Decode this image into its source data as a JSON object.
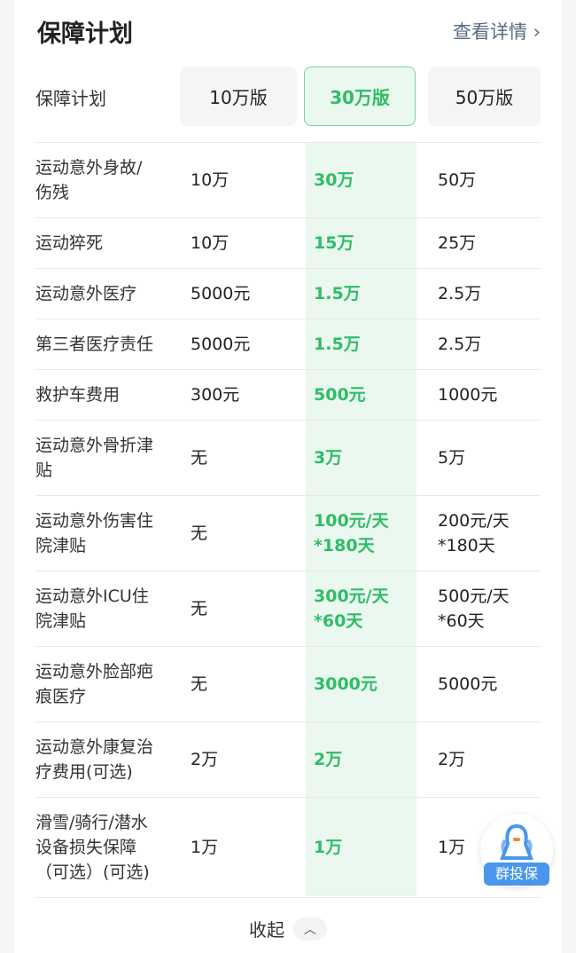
{
  "header": {
    "title": "保障计划",
    "more_link": "查看详情"
  },
  "plans": {
    "label": "保障计划",
    "options": [
      "10万版",
      "30万版",
      "50万版"
    ],
    "selected": "30万版"
  },
  "rows": [
    [
      "运动意外身故/\n伤残",
      "10万",
      "30万",
      "50万"
    ],
    [
      "运动猝死",
      "10万",
      "15万",
      "25万"
    ],
    [
      "运动意外医疗",
      "5000元",
      "1.5万",
      "2.5万"
    ],
    [
      "第三者医疗责任",
      "5000元",
      "1.5万",
      "2.5万"
    ],
    [
      "救护车费用",
      "300元",
      "500元",
      "1000元"
    ],
    [
      "运动意外骨折津\n贴",
      "无",
      "3万",
      "5万"
    ],
    [
      "运动意外伤害住\n院津贴",
      "无",
      "100元/天\n*180天",
      "200元/天\n*180天"
    ],
    [
      "运动意外ICU住\n院津贴",
      "无",
      "300元/天\n*60天",
      "500元/天\n*60天"
    ],
    [
      "运动意外脸部疤\n痕医疗",
      "无",
      "3000元",
      "5000元"
    ],
    [
      "运动意外康复治\n疗费用(可选)",
      "2万",
      "2万",
      "2万"
    ],
    [
      "滑雪/骑行/潜水\n设备损失保障\n（可选）(可选)",
      "1万",
      "1万",
      "1万"
    ]
  ],
  "footer": {
    "collapse_label": "收起"
  },
  "fab": {
    "label": "群投保"
  },
  "colors": {
    "accent": "#2ebd66",
    "highlight": "#ebf8f0",
    "link": "#5b6a85",
    "badge": "#4a96ec"
  }
}
